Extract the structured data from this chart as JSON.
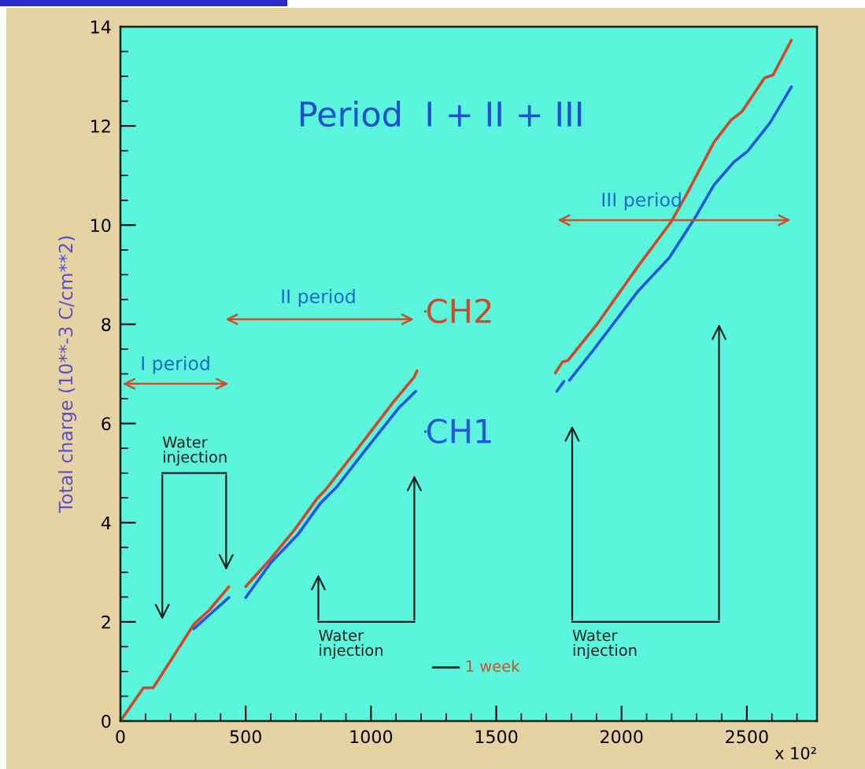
{
  "chart_data": {
    "type": "line",
    "title": "Period  I + II + III",
    "ylabel": "Total charge (10**-3 C/cm**2)",
    "xlabel": "x 10²",
    "xlim": [
      0,
      2780
    ],
    "xticks": [
      0,
      500,
      1000,
      1500,
      2000,
      2500
    ],
    "ylim": [
      0,
      14
    ],
    "yticks": [
      0,
      2,
      4,
      6,
      8,
      10,
      12,
      14
    ],
    "grid": false,
    "legend": "center",
    "marker": "none",
    "line_style": "solid",
    "series": [
      {
        "name": "CH2",
        "color": "#d0482a",
        "x": [
          0,
          92,
          131,
          293,
          355,
          433,
          null,
          500,
          596,
          697,
          787,
          820,
          977,
          1089,
          1173,
          1183,
          null,
          1736,
          1764,
          1786,
          1899,
          2066,
          2200,
          2268,
          2369,
          2437,
          2481,
          2571,
          2605,
          2678
        ],
        "values": [
          0,
          0.67,
          0.67,
          1.95,
          2.24,
          2.71,
          null,
          2.71,
          3.25,
          3.87,
          4.5,
          4.67,
          5.69,
          6.43,
          6.94,
          7.06,
          null,
          7.02,
          7.24,
          7.27,
          7.98,
          9.17,
          10.08,
          10.7,
          11.67,
          12.12,
          12.29,
          12.97,
          13.03,
          13.73
        ]
      },
      {
        "name": "CH1",
        "color": "#2456e0",
        "x": [
          293,
          355,
          433,
          null,
          500,
          600,
          708,
          798,
          865,
          977,
          1112,
          1179,
          null,
          1742,
          1770,
          null,
          1792,
          1886,
          2066,
          2190,
          2291,
          2369,
          2448,
          2503,
          2592,
          2678
        ],
        "values": [
          1.86,
          2.14,
          2.49,
          null,
          2.49,
          3.19,
          3.76,
          4.39,
          4.73,
          5.46,
          6.32,
          6.65,
          null,
          6.65,
          6.85,
          null,
          6.87,
          7.47,
          8.67,
          9.34,
          10.13,
          10.81,
          11.27,
          11.49,
          12.06,
          12.79
        ]
      }
    ],
    "annotations": [
      "I period",
      "II period",
      "III period",
      "Water\ninjection",
      "Water\ninjection",
      "Water\ninjection",
      "1 week"
    ]
  }
}
